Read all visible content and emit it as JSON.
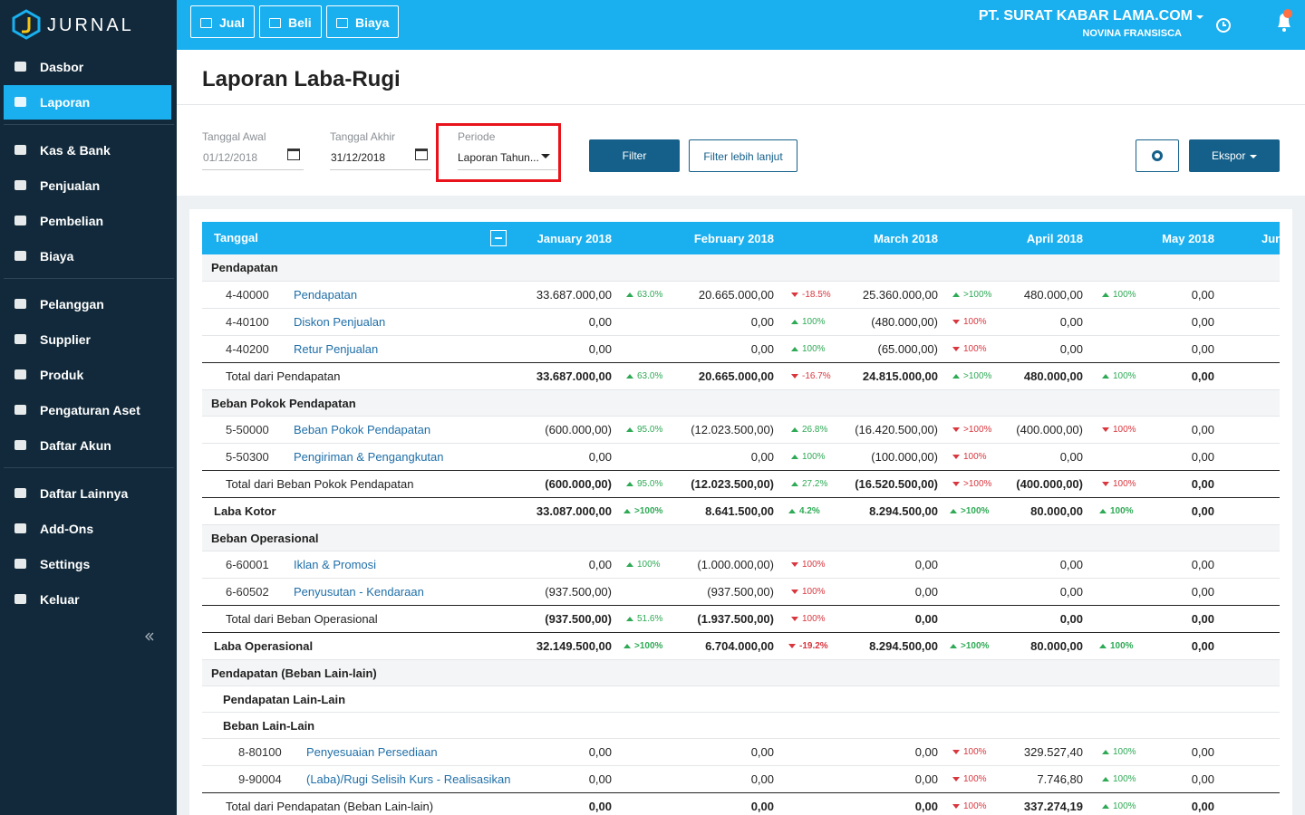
{
  "sidebar": {
    "logo": "JURNAL",
    "groups": [
      [
        {
          "label": "Dasbor"
        },
        {
          "label": "Laporan",
          "active": true
        }
      ],
      [
        {
          "label": "Kas & Bank"
        },
        {
          "label": "Penjualan"
        },
        {
          "label": "Pembelian"
        },
        {
          "label": "Biaya"
        }
      ],
      [
        {
          "label": "Pelanggan"
        },
        {
          "label": "Supplier"
        },
        {
          "label": "Produk"
        },
        {
          "label": "Pengaturan Aset"
        },
        {
          "label": "Daftar Akun"
        }
      ],
      [
        {
          "label": "Daftar Lainnya"
        },
        {
          "label": "Add-Ons"
        },
        {
          "label": "Settings"
        },
        {
          "label": "Keluar"
        }
      ]
    ]
  },
  "topbar": {
    "buttons": [
      "Jual",
      "Beli",
      "Biaya"
    ],
    "company": "PT. SURAT KABAR LAMA.COM",
    "user": "NOVINA FRANSISCA"
  },
  "header": {
    "title": "Laporan Laba-Rugi"
  },
  "filters": {
    "start": {
      "label": "Tanggal Awal",
      "value": "01/12/2018"
    },
    "end": {
      "label": "Tanggal Akhir",
      "value": "31/12/2018"
    },
    "period": {
      "label": "Periode",
      "value": "Laporan Tahun..."
    },
    "filter_button": "Filter",
    "advanced_button": "Filter lebih lanjut",
    "export_button": "Ekspor"
  },
  "table": {
    "columns": [
      "Tanggal",
      "January 2018",
      "February 2018",
      "March 2018",
      "April 2018",
      "May 2018",
      "Jun"
    ],
    "rows": [
      {
        "type": "section",
        "label": "Pendapatan"
      },
      {
        "type": "item",
        "code": "4-40000",
        "label": "Pendapatan",
        "cells": [
          {
            "v": "33.687.000,00",
            "c": "63.0%",
            "t": "up"
          },
          {
            "v": "20.665.000,00",
            "c": "-18.5%",
            "t": "down"
          },
          {
            "v": "25.360.000,00",
            "c": ">100%",
            "t": "up"
          },
          {
            "v": "480.000,00",
            "c": "100%",
            "t": "up"
          },
          {
            "v": "0,00"
          }
        ]
      },
      {
        "type": "item",
        "code": "4-40100",
        "label": "Diskon Penjualan",
        "cells": [
          {
            "v": "0,00"
          },
          {
            "v": "0,00",
            "c": "100%",
            "t": "up"
          },
          {
            "v": "(480.000,00)",
            "c": "100%",
            "t": "down"
          },
          {
            "v": "0,00"
          },
          {
            "v": "0,00"
          }
        ]
      },
      {
        "type": "item",
        "code": "4-40200",
        "label": "Retur Penjualan",
        "cells": [
          {
            "v": "0,00"
          },
          {
            "v": "0,00",
            "c": "100%",
            "t": "up"
          },
          {
            "v": "(65.000,00)",
            "c": "100%",
            "t": "down"
          },
          {
            "v": "0,00"
          },
          {
            "v": "0,00"
          }
        ]
      },
      {
        "type": "total",
        "label": "Total dari Pendapatan",
        "cells": [
          {
            "v": "33.687.000,00",
            "c": "63.0%",
            "t": "up"
          },
          {
            "v": "20.665.000,00",
            "c": "-16.7%",
            "t": "down"
          },
          {
            "v": "24.815.000,00",
            "c": ">100%",
            "t": "up"
          },
          {
            "v": "480.000,00",
            "c": "100%",
            "t": "up"
          },
          {
            "v": "0,00"
          }
        ]
      },
      {
        "type": "section",
        "label": "Beban Pokok Pendapatan"
      },
      {
        "type": "item",
        "code": "5-50000",
        "label": "Beban Pokok Pendapatan",
        "cells": [
          {
            "v": "(600.000,00)",
            "c": "95.0%",
            "t": "up"
          },
          {
            "v": "(12.023.500,00)",
            "c": "26.8%",
            "t": "up"
          },
          {
            "v": "(16.420.500,00)",
            "c": ">100%",
            "t": "down"
          },
          {
            "v": "(400.000,00)",
            "c": "100%",
            "t": "down"
          },
          {
            "v": "0,00"
          }
        ]
      },
      {
        "type": "item",
        "code": "5-50300",
        "label": "Pengiriman & Pengangkutan",
        "cells": [
          {
            "v": "0,00"
          },
          {
            "v": "0,00",
            "c": "100%",
            "t": "up"
          },
          {
            "v": "(100.000,00)",
            "c": "100%",
            "t": "down"
          },
          {
            "v": "0,00"
          },
          {
            "v": "0,00"
          }
        ]
      },
      {
        "type": "total",
        "label": "Total dari Beban Pokok Pendapatan",
        "cells": [
          {
            "v": "(600.000,00)",
            "c": "95.0%",
            "t": "up"
          },
          {
            "v": "(12.023.500,00)",
            "c": "27.2%",
            "t": "up"
          },
          {
            "v": "(16.520.500,00)",
            "c": ">100%",
            "t": "down"
          },
          {
            "v": "(400.000,00)",
            "c": "100%",
            "t": "down"
          },
          {
            "v": "0,00"
          }
        ]
      },
      {
        "type": "summary",
        "label": "Laba Kotor",
        "cells": [
          {
            "v": "33.087.000,00",
            "c": ">100%",
            "t": "up"
          },
          {
            "v": "8.641.500,00",
            "c": "4.2%",
            "t": "up"
          },
          {
            "v": "8.294.500,00",
            "c": ">100%",
            "t": "up"
          },
          {
            "v": "80.000,00",
            "c": "100%",
            "t": "up"
          },
          {
            "v": "0,00"
          }
        ]
      },
      {
        "type": "section",
        "label": "Beban Operasional"
      },
      {
        "type": "item",
        "code": "6-60001",
        "label": "Iklan & Promosi",
        "cells": [
          {
            "v": "0,00",
            "c": "100%",
            "t": "up"
          },
          {
            "v": "(1.000.000,00)",
            "c": "100%",
            "t": "down"
          },
          {
            "v": "0,00"
          },
          {
            "v": "0,00"
          },
          {
            "v": "0,00"
          }
        ]
      },
      {
        "type": "item",
        "code": "6-60502",
        "label": "Penyusutan - Kendaraan",
        "cells": [
          {
            "v": "(937.500,00)"
          },
          {
            "v": "(937.500,00)",
            "c": "100%",
            "t": "down"
          },
          {
            "v": "0,00"
          },
          {
            "v": "0,00"
          },
          {
            "v": "0,00"
          }
        ]
      },
      {
        "type": "total",
        "label": "Total dari Beban Operasional",
        "cells": [
          {
            "v": "(937.500,00)",
            "c": "51.6%",
            "t": "up"
          },
          {
            "v": "(1.937.500,00)",
            "c": "100%",
            "t": "down"
          },
          {
            "v": "0,00"
          },
          {
            "v": "0,00"
          },
          {
            "v": "0,00"
          }
        ]
      },
      {
        "type": "summary",
        "label": "Laba Operasional",
        "cells": [
          {
            "v": "32.149.500,00",
            "c": ">100%",
            "t": "up"
          },
          {
            "v": "6.704.000,00",
            "c": "-19.2%",
            "t": "down"
          },
          {
            "v": "8.294.500,00",
            "c": ">100%",
            "t": "up"
          },
          {
            "v": "80.000,00",
            "c": "100%",
            "t": "up"
          },
          {
            "v": "0,00"
          }
        ]
      },
      {
        "type": "section",
        "label": "Pendapatan (Beban Lain-lain)"
      },
      {
        "type": "subsection",
        "label": "Pendapatan Lain-Lain"
      },
      {
        "type": "subsection",
        "label": "Beban Lain-Lain"
      },
      {
        "type": "subitem",
        "code": "8-80100",
        "label": "Penyesuaian Persediaan",
        "cells": [
          {
            "v": "0,00"
          },
          {
            "v": "0,00"
          },
          {
            "v": "0,00",
            "c": "100%",
            "t": "down"
          },
          {
            "v": "329.527,40",
            "c": "100%",
            "t": "up"
          },
          {
            "v": "0,00"
          }
        ]
      },
      {
        "type": "subitem",
        "code": "9-90004",
        "label": "(Laba)/Rugi Selisih Kurs - Realisasikan",
        "cells": [
          {
            "v": "0,00"
          },
          {
            "v": "0,00"
          },
          {
            "v": "0,00",
            "c": "100%",
            "t": "down"
          },
          {
            "v": "7.746,80",
            "c": "100%",
            "t": "up"
          },
          {
            "v": "0,00"
          }
        ]
      },
      {
        "type": "total",
        "label": "Total dari Pendapatan (Beban Lain-lain)",
        "cells": [
          {
            "v": "0,00"
          },
          {
            "v": "0,00"
          },
          {
            "v": "0,00",
            "c": "100%",
            "t": "down"
          },
          {
            "v": "337.274,19",
            "c": "100%",
            "t": "up"
          },
          {
            "v": "0,00"
          }
        ]
      }
    ]
  }
}
